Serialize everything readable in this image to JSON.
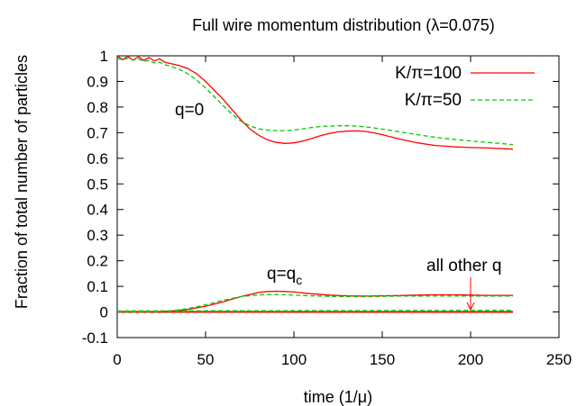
{
  "chart_data": {
    "type": "line",
    "title": "Full wire momentum distribution (λ=0.075)",
    "xlabel": "time (1/μ)",
    "ylabel": "Fraction of total number of particles",
    "xlim": [
      0,
      250
    ],
    "ylim": [
      -0.1,
      1
    ],
    "xticks": [
      "0",
      "50",
      "100",
      "150",
      "200",
      "250"
    ],
    "yticks": [
      "-0.1",
      "0",
      "0.1",
      "0.2",
      "0.3",
      "0.4",
      "0.5",
      "0.6",
      "0.7",
      "0.8",
      "0.9",
      "1"
    ],
    "grid": false,
    "legend_position": "top-right",
    "series": [
      {
        "name": "K/π=100",
        "color": "#ff0000",
        "dash": "solid",
        "curves": {
          "q=0": {
            "x": [
              0,
              3,
              6,
              9,
              12,
              15,
              18,
              21,
              24,
              27,
              30,
              35,
              40,
              45,
              50,
              55,
              60,
              65,
              70,
              75,
              80,
              85,
              90,
              95,
              100,
              105,
              110,
              115,
              120,
              125,
              130,
              135,
              140,
              145,
              150,
              160,
              170,
              180,
              190,
              200,
              210,
              220,
              224
            ],
            "y": [
              1.0,
              0.985,
              0.998,
              0.983,
              0.996,
              0.982,
              0.993,
              0.98,
              0.988,
              0.975,
              0.97,
              0.962,
              0.95,
              0.93,
              0.9,
              0.865,
              0.83,
              0.79,
              0.75,
              0.715,
              0.69,
              0.672,
              0.662,
              0.658,
              0.66,
              0.667,
              0.677,
              0.688,
              0.697,
              0.703,
              0.706,
              0.707,
              0.705,
              0.7,
              0.692,
              0.675,
              0.66,
              0.65,
              0.645,
              0.642,
              0.64,
              0.637,
              0.636
            ]
          },
          "q=qc": {
            "x": [
              0,
              20,
              30,
              40,
              50,
              60,
              70,
              80,
              85,
              90,
              95,
              100,
              110,
              120,
              130,
              140,
              150,
              160,
              170,
              180,
              190,
              200,
              210,
              220,
              224
            ],
            "y": [
              0,
              0,
              0.003,
              0.01,
              0.022,
              0.04,
              0.06,
              0.076,
              0.08,
              0.081,
              0.08,
              0.078,
              0.071,
              0.066,
              0.063,
              0.062,
              0.063,
              0.064,
              0.066,
              0.067,
              0.067,
              0.066,
              0.065,
              0.065,
              0.065
            ]
          },
          "all other q": {
            "x": [
              0,
              224
            ],
            "y": [
              0,
              0
            ]
          }
        }
      },
      {
        "name": "K/π=50",
        "color": "#00cc00",
        "dash": "dashed",
        "curves": {
          "q=0": {
            "x": [
              0,
              3,
              6,
              9,
              12,
              15,
              18,
              21,
              24,
              27,
              30,
              35,
              40,
              45,
              50,
              55,
              60,
              65,
              70,
              75,
              80,
              85,
              90,
              95,
              100,
              105,
              110,
              115,
              120,
              125,
              130,
              135,
              140,
              145,
              150,
              160,
              170,
              180,
              190,
              200,
              210,
              220,
              224
            ],
            "y": [
              0.99,
              0.985,
              0.99,
              0.983,
              0.988,
              0.978,
              0.982,
              0.972,
              0.975,
              0.965,
              0.96,
              0.948,
              0.93,
              0.905,
              0.875,
              0.84,
              0.805,
              0.772,
              0.745,
              0.727,
              0.715,
              0.71,
              0.708,
              0.708,
              0.71,
              0.715,
              0.72,
              0.724,
              0.726,
              0.727,
              0.727,
              0.726,
              0.723,
              0.719,
              0.714,
              0.703,
              0.692,
              0.682,
              0.674,
              0.668,
              0.662,
              0.656,
              0.653
            ]
          },
          "q=qc": {
            "x": [
              0,
              20,
              30,
              40,
              50,
              60,
              70,
              80,
              85,
              90,
              95,
              100,
              110,
              120,
              130,
              140,
              150,
              160,
              170,
              180,
              190,
              200,
              210,
              220,
              224
            ],
            "y": [
              0,
              0,
              0.004,
              0.013,
              0.028,
              0.046,
              0.06,
              0.067,
              0.068,
              0.068,
              0.067,
              0.066,
              0.063,
              0.061,
              0.06,
              0.06,
              0.061,
              0.062,
              0.062,
              0.062,
              0.062,
              0.062,
              0.062,
              0.062,
              0.062
            ]
          },
          "all other q": {
            "x": [
              0,
              224
            ],
            "y": [
              0.003,
              0.005
            ]
          }
        }
      }
    ],
    "annotations": [
      {
        "text": "q=0",
        "x": 135,
        "y": 0.805
      },
      {
        "text": "q=q",
        "subscript": "c",
        "x": 155,
        "y": 0.115
      },
      {
        "text": "all other q",
        "x": 204,
        "y": 0.19,
        "arrow_to": [
          200,
          0.0
        ]
      }
    ]
  }
}
